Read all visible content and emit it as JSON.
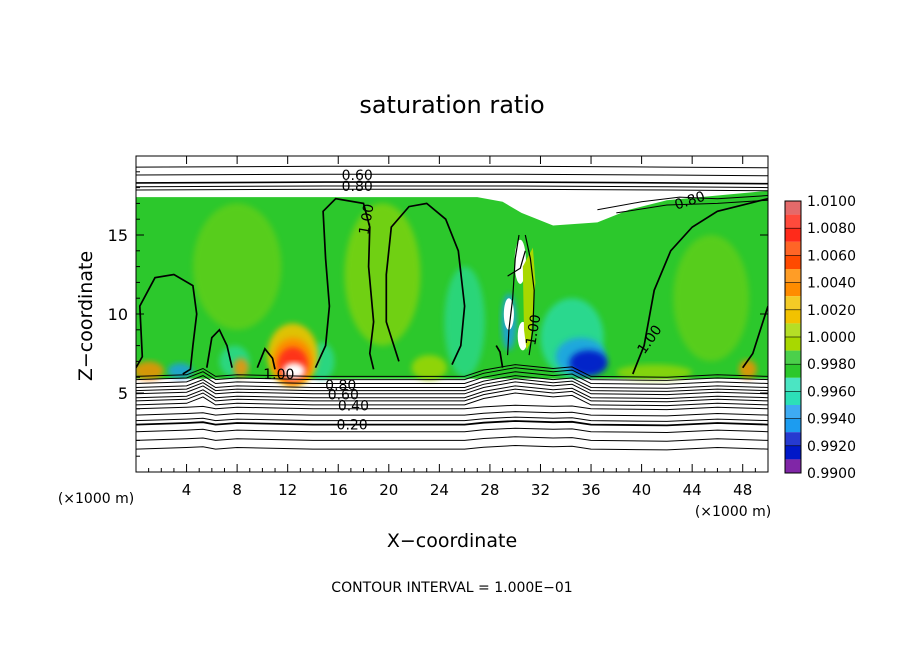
{
  "chart_data": {
    "type": "heatmap",
    "title": "saturation ratio",
    "xlabel": "X−coordinate",
    "ylabel": "Z−coordinate",
    "x_unit": "(×1000 m)",
    "y_unit": "(×1000 m)",
    "xlim": [
      0,
      50
    ],
    "ylim": [
      0,
      20
    ],
    "x_ticks": [
      4,
      8,
      12,
      16,
      20,
      24,
      28,
      32,
      36,
      40,
      44,
      48
    ],
    "y_ticks": [
      5,
      10,
      15
    ],
    "footer": "CONTOUR INTERVAL = 1.000E−01",
    "colorbar": {
      "levels": [
        "1.0100",
        "1.0080",
        "1.0060",
        "1.0040",
        "1.0020",
        "1.0000",
        "0.9980",
        "0.9960",
        "0.9940",
        "0.9920",
        "0.9900"
      ],
      "colors": [
        "#e46a6a",
        "#ff2a1a",
        "#ff4a00",
        "#ff8c00",
        "#f2c200",
        "#a8d800",
        "#2cc82c",
        "#2ce0b8",
        "#1c9cf0",
        "#0018c8",
        "#6a0098"
      ]
    },
    "contour_labels": [
      {
        "text": "0.60",
        "x": 17.5,
        "y": 18.8
      },
      {
        "text": "0.80",
        "x": 17.5,
        "y": 18.1
      },
      {
        "text": "0.80",
        "x": 43.8,
        "y": 17.2
      },
      {
        "text": "1.00",
        "x": 18.2,
        "y": 16.0
      },
      {
        "text": "1.00",
        "x": 31.4,
        "y": 9.0
      },
      {
        "text": "1.00",
        "x": 40.6,
        "y": 8.4
      },
      {
        "text": "1.00",
        "x": 11.3,
        "y": 6.2
      },
      {
        "text": "0.80",
        "x": 16.2,
        "y": 5.5
      },
      {
        "text": "0.60",
        "x": 16.4,
        "y": 4.9
      },
      {
        "text": "0.40",
        "x": 17.2,
        "y": 4.2
      },
      {
        "text": "0.20",
        "x": 17.1,
        "y": 3.0
      }
    ]
  }
}
